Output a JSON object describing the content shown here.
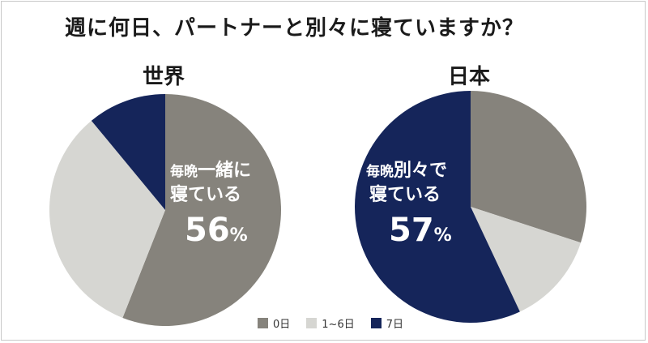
{
  "title": "週に何日、パートナーと別々に寝ていますか？",
  "colors": {
    "zero_days": "#86837c",
    "one_to_six": "#d6d6d2",
    "seven": "#15255a"
  },
  "legend": [
    {
      "label": "0日",
      "color": "#86837c"
    },
    {
      "label": "1~6日",
      "color": "#d6d6d2"
    },
    {
      "label": "7日",
      "color": "#15255a"
    }
  ],
  "chart_data": [
    {
      "type": "pie",
      "title": "世界",
      "categories": [
        "0日",
        "1~6日",
        "7日"
      ],
      "values": [
        56,
        33,
        11
      ],
      "annotation": {
        "line1_small": "毎晩",
        "line1_big": "一緒に",
        "line2": "寝ている",
        "value": "56",
        "unit": "%"
      }
    },
    {
      "type": "pie",
      "title": "日本",
      "categories": [
        "0日",
        "1~6日",
        "7日"
      ],
      "values": [
        30,
        13,
        57
      ],
      "annotation": {
        "line1_small": "毎晩",
        "line1_big": "別々で",
        "line2": "寝ている",
        "value": "57",
        "unit": "%"
      }
    }
  ]
}
